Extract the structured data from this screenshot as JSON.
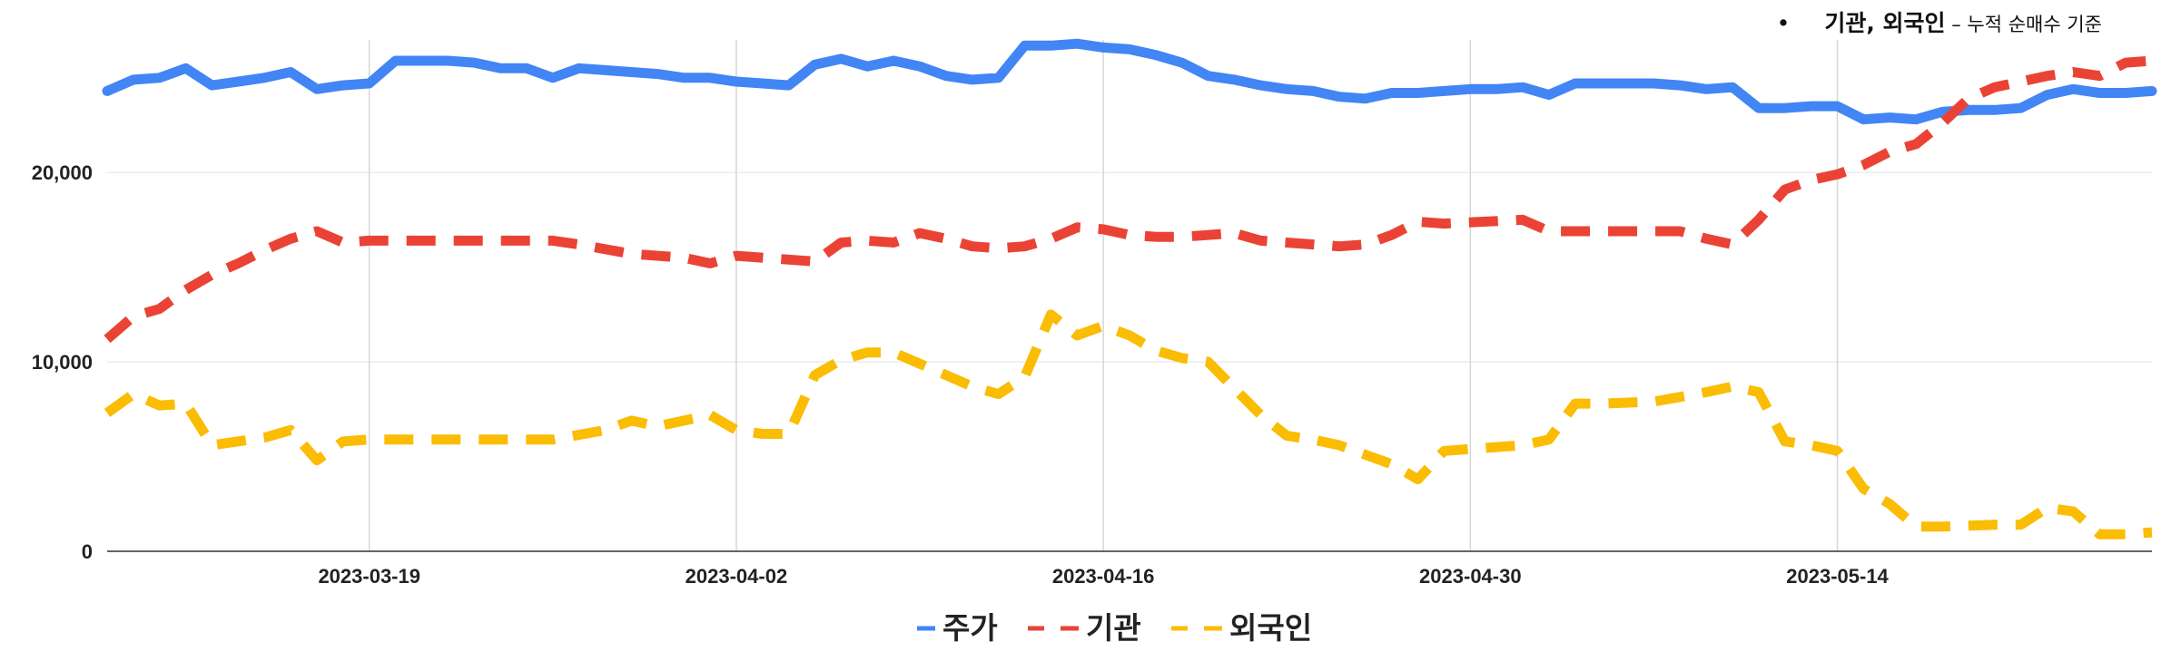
{
  "note": {
    "bullet": "•",
    "emphasis": "기관, 외국인",
    "rest": " – 누적 순매수 기준"
  },
  "chart_data": {
    "type": "line",
    "title": "",
    "xlabel": "",
    "ylabel": "",
    "x_start": "2023-03-09",
    "x_end": "2023-05-26",
    "x_ticks": [
      "2023-03-19",
      "2023-04-02",
      "2023-04-16",
      "2023-04-30",
      "2023-05-14"
    ],
    "ylim": [
      0,
      27000
    ],
    "y_ticks": [
      0,
      10000,
      20000
    ],
    "y_tick_labels": [
      "0",
      "10,000",
      "20,000"
    ],
    "grid": {
      "vertical": true,
      "horizontal": true
    },
    "legend_position": "bottom",
    "series": [
      {
        "name": "주가",
        "color": "#4285F4",
        "dash": "solid",
        "points": [
          [
            "2023-03-09",
            24300
          ],
          [
            "2023-03-10",
            24900
          ],
          [
            "2023-03-11",
            25000
          ],
          [
            "2023-03-12",
            25500
          ],
          [
            "2023-03-13",
            24600
          ],
          [
            "2023-03-14",
            24800
          ],
          [
            "2023-03-15",
            25000
          ],
          [
            "2023-03-16",
            25300
          ],
          [
            "2023-03-17",
            24400
          ],
          [
            "2023-03-18",
            24600
          ],
          [
            "2023-03-19",
            24700
          ],
          [
            "2023-03-20",
            25900
          ],
          [
            "2023-03-21",
            25900
          ],
          [
            "2023-03-22",
            25900
          ],
          [
            "2023-03-23",
            25800
          ],
          [
            "2023-03-24",
            25500
          ],
          [
            "2023-03-25",
            25500
          ],
          [
            "2023-03-26",
            25000
          ],
          [
            "2023-03-27",
            25500
          ],
          [
            "2023-03-28",
            25400
          ],
          [
            "2023-03-29",
            25300
          ],
          [
            "2023-03-30",
            25200
          ],
          [
            "2023-03-31",
            25000
          ],
          [
            "2023-04-01",
            25000
          ],
          [
            "2023-04-02",
            24800
          ],
          [
            "2023-04-03",
            24700
          ],
          [
            "2023-04-04",
            24600
          ],
          [
            "2023-04-05",
            25700
          ],
          [
            "2023-04-06",
            26000
          ],
          [
            "2023-04-07",
            25600
          ],
          [
            "2023-04-08",
            25900
          ],
          [
            "2023-04-09",
            25600
          ],
          [
            "2023-04-10",
            25100
          ],
          [
            "2023-04-11",
            24900
          ],
          [
            "2023-04-12",
            25000
          ],
          [
            "2023-04-13",
            26700
          ],
          [
            "2023-04-14",
            26700
          ],
          [
            "2023-04-15",
            26800
          ],
          [
            "2023-04-16",
            26600
          ],
          [
            "2023-04-17",
            26500
          ],
          [
            "2023-04-18",
            26200
          ],
          [
            "2023-04-19",
            25800
          ],
          [
            "2023-04-20",
            25100
          ],
          [
            "2023-04-21",
            24900
          ],
          [
            "2023-04-22",
            24600
          ],
          [
            "2023-04-23",
            24400
          ],
          [
            "2023-04-24",
            24300
          ],
          [
            "2023-04-25",
            24000
          ],
          [
            "2023-04-26",
            23900
          ],
          [
            "2023-04-27",
            24200
          ],
          [
            "2023-04-28",
            24200
          ],
          [
            "2023-04-29",
            24300
          ],
          [
            "2023-04-30",
            24400
          ],
          [
            "2023-05-01",
            24400
          ],
          [
            "2023-05-02",
            24500
          ],
          [
            "2023-05-03",
            24100
          ],
          [
            "2023-05-04",
            24700
          ],
          [
            "2023-05-05",
            24700
          ],
          [
            "2023-05-06",
            24700
          ],
          [
            "2023-05-07",
            24700
          ],
          [
            "2023-05-08",
            24600
          ],
          [
            "2023-05-09",
            24400
          ],
          [
            "2023-05-10",
            24500
          ],
          [
            "2023-05-11",
            23400
          ],
          [
            "2023-05-12",
            23400
          ],
          [
            "2023-05-13",
            23500
          ],
          [
            "2023-05-14",
            23500
          ],
          [
            "2023-05-15",
            22800
          ],
          [
            "2023-05-16",
            22900
          ],
          [
            "2023-05-17",
            22800
          ],
          [
            "2023-05-18",
            23200
          ],
          [
            "2023-05-19",
            23300
          ],
          [
            "2023-05-20",
            23300
          ],
          [
            "2023-05-21",
            23400
          ],
          [
            "2023-05-22",
            24100
          ],
          [
            "2023-05-23",
            24400
          ],
          [
            "2023-05-24",
            24200
          ],
          [
            "2023-05-25",
            24200
          ],
          [
            "2023-05-26",
            24300
          ]
        ]
      },
      {
        "name": "기관",
        "color": "#EA4335",
        "dash": "dashed",
        "points": [
          [
            "2023-03-09",
            11200
          ],
          [
            "2023-03-10",
            12400
          ],
          [
            "2023-03-11",
            12800
          ],
          [
            "2023-03-12",
            13800
          ],
          [
            "2023-03-13",
            14600
          ],
          [
            "2023-03-14",
            15200
          ],
          [
            "2023-03-15",
            15900
          ],
          [
            "2023-03-16",
            16500
          ],
          [
            "2023-03-17",
            16900
          ],
          [
            "2023-03-18",
            16300
          ],
          [
            "2023-03-19",
            16400
          ],
          [
            "2023-03-20",
            16400
          ],
          [
            "2023-03-24",
            16400
          ],
          [
            "2023-03-26",
            16400
          ],
          [
            "2023-03-27",
            16200
          ],
          [
            "2023-03-29",
            15700
          ],
          [
            "2023-03-31",
            15500
          ],
          [
            "2023-04-01",
            15200
          ],
          [
            "2023-04-02",
            15600
          ],
          [
            "2023-04-04",
            15400
          ],
          [
            "2023-04-05",
            15300
          ],
          [
            "2023-04-06",
            16300
          ],
          [
            "2023-04-07",
            16400
          ],
          [
            "2023-04-08",
            16300
          ],
          [
            "2023-04-09",
            16800
          ],
          [
            "2023-04-10",
            16500
          ],
          [
            "2023-04-11",
            16100
          ],
          [
            "2023-04-12",
            16000
          ],
          [
            "2023-04-13",
            16100
          ],
          [
            "2023-04-14",
            16500
          ],
          [
            "2023-04-15",
            17100
          ],
          [
            "2023-04-16",
            17000
          ],
          [
            "2023-04-17",
            16700
          ],
          [
            "2023-04-18",
            16600
          ],
          [
            "2023-04-19",
            16600
          ],
          [
            "2023-04-20",
            16700
          ],
          [
            "2023-04-21",
            16800
          ],
          [
            "2023-04-22",
            16400
          ],
          [
            "2023-04-24",
            16200
          ],
          [
            "2023-04-25",
            16100
          ],
          [
            "2023-04-26",
            16200
          ],
          [
            "2023-04-27",
            16700
          ],
          [
            "2023-04-28",
            17400
          ],
          [
            "2023-04-29",
            17300
          ],
          [
            "2023-05-02",
            17500
          ],
          [
            "2023-05-03",
            16900
          ],
          [
            "2023-05-04",
            16900
          ],
          [
            "2023-05-08",
            16900
          ],
          [
            "2023-05-09",
            16500
          ],
          [
            "2023-05-10",
            16200
          ],
          [
            "2023-05-11",
            17500
          ],
          [
            "2023-05-12",
            19100
          ],
          [
            "2023-05-13",
            19600
          ],
          [
            "2023-05-14",
            19900
          ],
          [
            "2023-05-15",
            20400
          ],
          [
            "2023-05-16",
            21100
          ],
          [
            "2023-05-17",
            21500
          ],
          [
            "2023-05-18",
            22600
          ],
          [
            "2023-05-19",
            23900
          ],
          [
            "2023-05-20",
            24500
          ],
          [
            "2023-05-21",
            24800
          ],
          [
            "2023-05-22",
            25100
          ],
          [
            "2023-05-23",
            25300
          ],
          [
            "2023-05-24",
            25100
          ],
          [
            "2023-05-25",
            25800
          ],
          [
            "2023-05-26",
            25900
          ]
        ]
      },
      {
        "name": "외국인",
        "color": "#FBBC04",
        "dash": "dashed",
        "points": [
          [
            "2023-03-09",
            7300
          ],
          [
            "2023-03-10",
            8300
          ],
          [
            "2023-03-11",
            7700
          ],
          [
            "2023-03-12",
            7800
          ],
          [
            "2023-03-13",
            5600
          ],
          [
            "2023-03-14",
            5800
          ],
          [
            "2023-03-15",
            6000
          ],
          [
            "2023-03-16",
            6400
          ],
          [
            "2023-03-17",
            4800
          ],
          [
            "2023-03-18",
            5800
          ],
          [
            "2023-03-19",
            5900
          ],
          [
            "2023-03-20",
            5900
          ],
          [
            "2023-03-26",
            5900
          ],
          [
            "2023-03-28",
            6400
          ],
          [
            "2023-03-29",
            6900
          ],
          [
            "2023-03-30",
            6600
          ],
          [
            "2023-03-31",
            6900
          ],
          [
            "2023-04-01",
            7200
          ],
          [
            "2023-04-02",
            6400
          ],
          [
            "2023-04-03",
            6200
          ],
          [
            "2023-04-04",
            6200
          ],
          [
            "2023-04-05",
            9300
          ],
          [
            "2023-04-06",
            10100
          ],
          [
            "2023-04-07",
            10500
          ],
          [
            "2023-04-08",
            10500
          ],
          [
            "2023-04-09",
            9900
          ],
          [
            "2023-04-10",
            9300
          ],
          [
            "2023-04-11",
            8700
          ],
          [
            "2023-04-12",
            8300
          ],
          [
            "2023-04-13",
            9200
          ],
          [
            "2023-04-14",
            12500
          ],
          [
            "2023-04-15",
            11400
          ],
          [
            "2023-04-16",
            11900
          ],
          [
            "2023-04-17",
            11400
          ],
          [
            "2023-04-18",
            10600
          ],
          [
            "2023-04-19",
            10200
          ],
          [
            "2023-04-20",
            10000
          ],
          [
            "2023-04-21",
            8600
          ],
          [
            "2023-04-22",
            7200
          ],
          [
            "2023-04-23",
            6100
          ],
          [
            "2023-04-24",
            5900
          ],
          [
            "2023-04-25",
            5600
          ],
          [
            "2023-04-26",
            5100
          ],
          [
            "2023-04-27",
            4600
          ],
          [
            "2023-04-28",
            3800
          ],
          [
            "2023-04-29",
            5300
          ],
          [
            "2023-04-30",
            5400
          ],
          [
            "2023-05-02",
            5600
          ],
          [
            "2023-05-03",
            5900
          ],
          [
            "2023-05-04",
            7800
          ],
          [
            "2023-05-05",
            7800
          ],
          [
            "2023-05-07",
            7900
          ],
          [
            "2023-05-09",
            8400
          ],
          [
            "2023-05-10",
            8700
          ],
          [
            "2023-05-11",
            8400
          ],
          [
            "2023-05-12",
            5800
          ],
          [
            "2023-05-13",
            5600
          ],
          [
            "2023-05-14",
            5300
          ],
          [
            "2023-05-15",
            3300
          ],
          [
            "2023-05-16",
            2500
          ],
          [
            "2023-05-17",
            1300
          ],
          [
            "2023-05-18",
            1300
          ],
          [
            "2023-05-20",
            1400
          ],
          [
            "2023-05-21",
            1400
          ],
          [
            "2023-05-22",
            2300
          ],
          [
            "2023-05-23",
            2100
          ],
          [
            "2023-05-24",
            900
          ],
          [
            "2023-05-25",
            900
          ],
          [
            "2023-05-26",
            1000
          ]
        ]
      }
    ]
  }
}
